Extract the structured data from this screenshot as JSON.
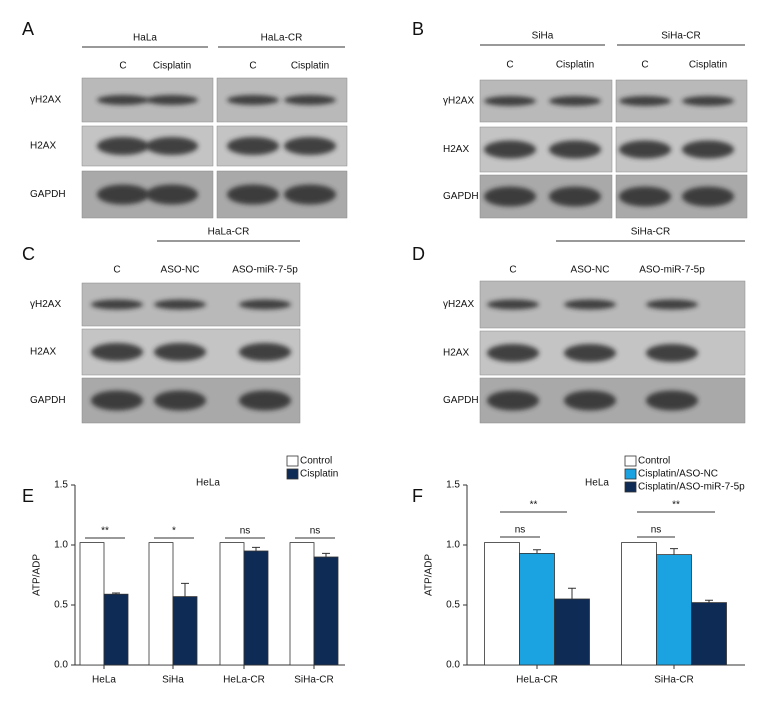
{
  "blots": [
    {
      "label": "A",
      "groups": [
        "HaLa",
        "HaLa-CR"
      ],
      "columns": [
        "C",
        "Cisplatin",
        "C",
        "Cisplatin"
      ],
      "rows": [
        "γH2AX",
        "H2AX",
        "GAPDH"
      ]
    },
    {
      "label": "B",
      "groups": [
        "SiHa",
        "SiHa-CR"
      ],
      "columns": [
        "C",
        "Cisplatin",
        "C",
        "Cisplatin"
      ],
      "rows": [
        "γH2AX",
        "H2AX",
        "GAPDH"
      ]
    },
    {
      "label": "C",
      "groups": [
        "HaLa-CR"
      ],
      "columns": [
        "C",
        "ASO-NC",
        "ASO-miR-7-5p"
      ],
      "rows": [
        "γH2AX",
        "H2AX",
        "GAPDH"
      ]
    },
    {
      "label": "D",
      "groups": [
        "SiHa-CR"
      ],
      "columns": [
        "C",
        "ASO-NC",
        "ASO-miR-7-5p"
      ],
      "rows": [
        "γH2AX",
        "H2AX",
        "GAPDH"
      ]
    }
  ],
  "chart_data": [
    {
      "type": "bar",
      "panel": "E",
      "title": "HeLa",
      "ylabel": "ATP/ADP",
      "categories": [
        "HeLa",
        "SiHa",
        "HeLa-CR",
        "SiHa-CR"
      ],
      "series": [
        {
          "name": "Control",
          "color": "#ffffff",
          "values": [
            1.02,
            1.02,
            1.02,
            1.02
          ]
        },
        {
          "name": "Cisplatin",
          "color": "#0d2b55",
          "values": [
            0.59,
            0.57,
            0.95,
            0.9
          ],
          "errors": [
            0.01,
            0.11,
            0.03,
            0.03
          ]
        }
      ],
      "annotations": [
        "**",
        "*",
        "ns",
        "ns"
      ],
      "ylim": [
        0,
        1.5
      ],
      "yticks": [
        {
          "value": 0,
          "label": "0.0"
        },
        0.5,
        {
          "value": 1,
          "label": "1.0"
        },
        1.5
      ],
      "legend": "upper right"
    },
    {
      "type": "bar",
      "panel": "F",
      "title": "HeLa",
      "ylabel": "ATP/ADP",
      "categories": [
        "HeLa-CR",
        "SiHa-CR"
      ],
      "series": [
        {
          "name": "Control",
          "color": "#ffffff",
          "values": [
            1.02,
            1.02
          ]
        },
        {
          "name": "Cisplatin/ASO-NC",
          "color": "#1aa3e0",
          "values": [
            0.93,
            0.92
          ],
          "errors": [
            0.03,
            0.05
          ]
        },
        {
          "name": "Cisplatin/ASO-miR-7-5p",
          "color": "#0d2b55",
          "values": [
            0.55,
            0.52
          ],
          "errors": [
            0.09,
            0.02
          ]
        }
      ],
      "annotations": [
        "ns",
        "**",
        "ns",
        "**"
      ],
      "ylim": [
        0,
        1.5
      ],
      "yticks": [
        {
          "value": 0,
          "label": "0.0"
        },
        0.5,
        {
          "value": 1,
          "label": "1.0"
        },
        1.5
      ],
      "legend": "upper right"
    }
  ]
}
